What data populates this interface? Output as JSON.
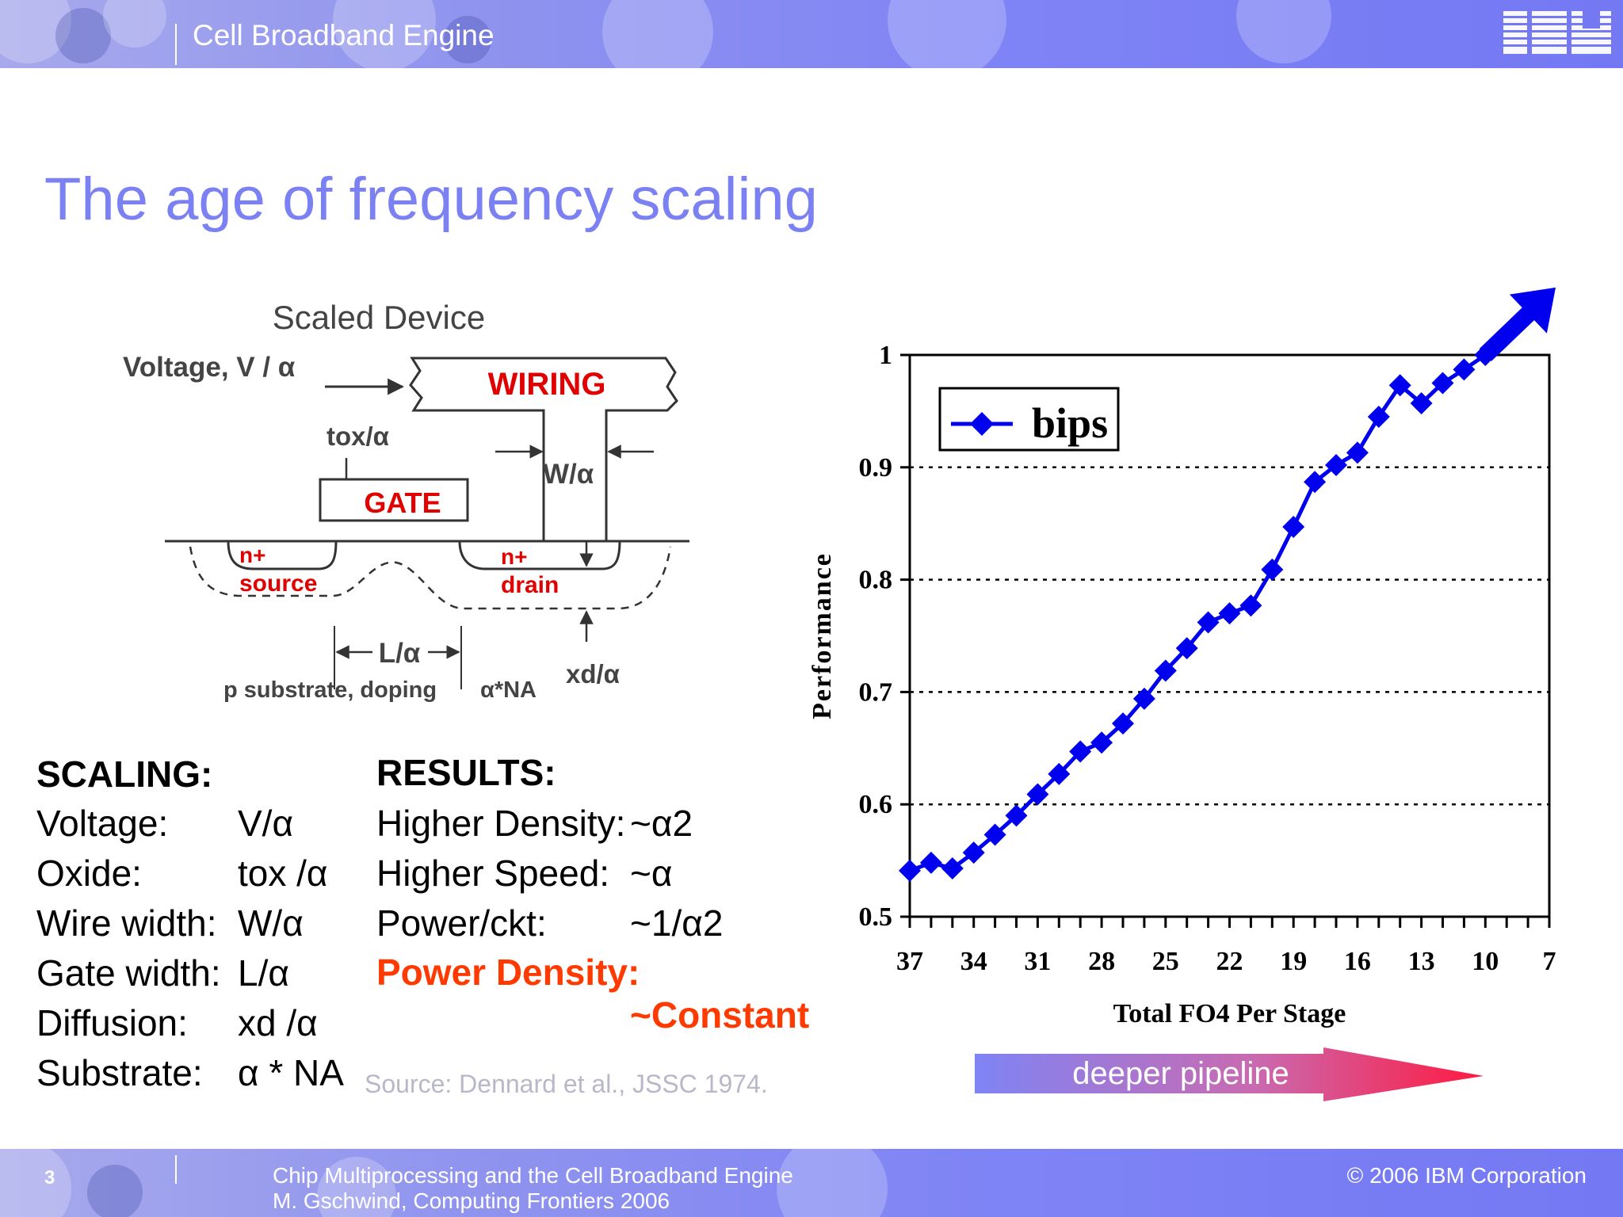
{
  "header": {
    "title": "Cell Broadband Engine",
    "logo_text": "IBM"
  },
  "slide": {
    "title": "The age of frequency scaling"
  },
  "diagram": {
    "heading": "Scaled Device",
    "voltage": "Voltage, V / α",
    "wiring": "WIRING",
    "tox": "tox/α",
    "gate": "GATE",
    "width": "W/α",
    "n_source": "n+",
    "source": "source",
    "n_drain": "n+",
    "drain": "drain",
    "length": "L/α",
    "substrate": "p substrate, doping",
    "doping": "α*NA",
    "xd": "xd/α"
  },
  "scaling": {
    "heading": "SCALING:",
    "rows": [
      {
        "label": "Voltage:",
        "value": "V/α"
      },
      {
        "label": "Oxide:",
        "value": "tox /α"
      },
      {
        "label": "Wire width:",
        "value": "W/α"
      },
      {
        "label": "Gate width:",
        "value": "L/α"
      },
      {
        "label": "Diffusion:",
        "value": "xd /α"
      },
      {
        "label": "Substrate:",
        "value": "α * NA"
      }
    ]
  },
  "results": {
    "heading": "RESULTS:",
    "rows": [
      {
        "label": "Higher Density:",
        "value": "~α2"
      },
      {
        "label": "Higher Speed:",
        "value": "~α"
      },
      {
        "label": "Power/ckt:",
        "value": "~1/α2"
      }
    ],
    "power_density": "Power Density:",
    "constant": "~Constant"
  },
  "source": "Source: Dennard et al., JSSC 1974.",
  "pipeline_label": "deeper pipeline",
  "chart_data": {
    "type": "line",
    "title": "",
    "xlabel": "Total FO4 Per Stage",
    "ylabel": "Performance",
    "x_reversed": true,
    "xlim": [
      37,
      7
    ],
    "ylim": [
      0.5,
      1.0
    ],
    "x_ticks": [
      "37",
      "34",
      "31",
      "28",
      "25",
      "22",
      "19",
      "16",
      "13",
      "10",
      "7"
    ],
    "y_ticks": [
      "0.5",
      "0.6",
      "0.7",
      "0.8",
      "0.9",
      "1"
    ],
    "grid": "horizontal dotted",
    "legend": "top-left",
    "series": [
      {
        "name": "bips",
        "color": "#0000ee",
        "marker": "diamond",
        "x": [
          37,
          36,
          35,
          34,
          33,
          32,
          31,
          30,
          29,
          28,
          27,
          26,
          25,
          24,
          23,
          22,
          21,
          20,
          19,
          18,
          17,
          16,
          15,
          14,
          13,
          12,
          11,
          10
        ],
        "y": [
          0.541,
          0.548,
          0.543,
          0.557,
          0.573,
          0.59,
          0.609,
          0.627,
          0.647,
          0.655,
          0.672,
          0.694,
          0.719,
          0.739,
          0.762,
          0.77,
          0.777,
          0.809,
          0.847,
          0.887,
          0.902,
          0.913,
          0.945,
          0.973,
          0.957,
          0.975,
          0.987,
          1.0
        ]
      }
    ],
    "trend_arrow": {
      "from": [
        10,
        1.0
      ],
      "to": [
        7,
        1.06
      ]
    }
  },
  "footer": {
    "page": "3",
    "line1": "Chip Multiprocessing and the Cell Broadband Engine",
    "line2": "M. Gschwind, Computing Frontiers 2006",
    "copyright": "© 2006 IBM Corporation"
  }
}
